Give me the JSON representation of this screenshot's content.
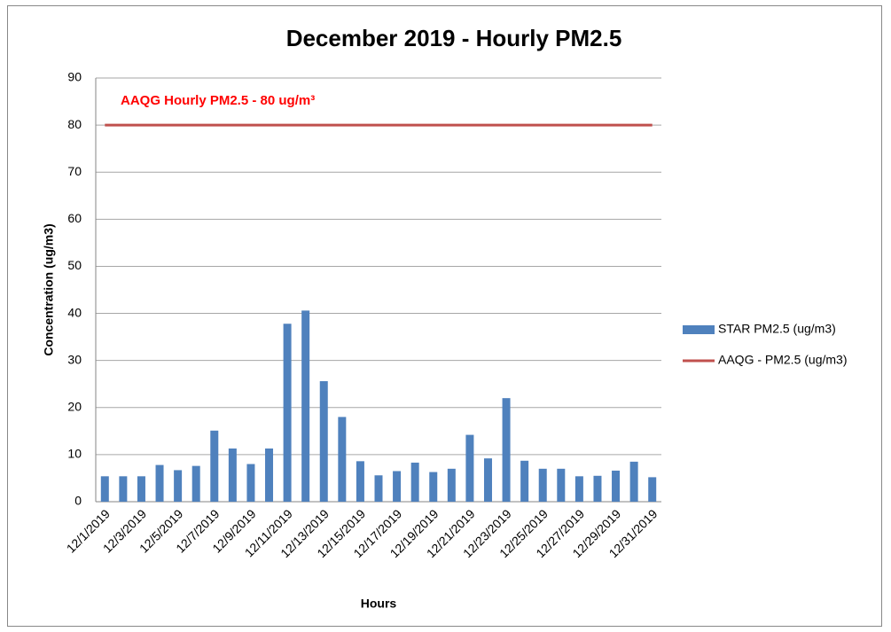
{
  "chart_data": {
    "type": "bar",
    "title": "December 2019 - Hourly PM2.5",
    "annotation": "AAQG Hourly PM2.5 - 80 ug/m³",
    "x_label": "Hours",
    "y_label": "Concentration (ug/m3)",
    "categories": [
      "12/1/2019",
      null,
      "12/3/2019",
      null,
      "12/5/2019",
      null,
      "12/7/2019",
      null,
      "12/9/2019",
      null,
      "12/11/2019",
      null,
      "12/13/2019",
      null,
      "12/15/2019",
      null,
      "12/17/2019",
      null,
      "12/19/2019",
      null,
      "12/21/2019",
      null,
      "12/23/2019",
      null,
      "12/25/2019",
      null,
      "12/27/2019",
      null,
      "12/29/2019",
      null,
      "12/31/2019"
    ],
    "series": [
      {
        "name": "STAR PM2.5 (ug/m3)",
        "type": "bar",
        "color": "#4f81bd",
        "values": [
          5.4,
          5.4,
          5.4,
          7.8,
          6.7,
          7.6,
          15.1,
          11.3,
          8.0,
          11.3,
          37.8,
          40.6,
          25.6,
          18.0,
          8.6,
          5.6,
          6.5,
          8.3,
          6.3,
          7.0,
          14.2,
          9.2,
          22.0,
          8.7,
          7.0,
          7.0,
          5.4,
          5.5,
          6.6,
          8.5,
          5.2
        ]
      },
      {
        "name": "AAQG - PM2.5 (ug/m3)",
        "type": "line",
        "color": "#c0504d",
        "values": [
          80,
          80,
          80,
          80,
          80,
          80,
          80,
          80,
          80,
          80,
          80,
          80,
          80,
          80,
          80,
          80,
          80,
          80,
          80,
          80,
          80,
          80,
          80,
          80,
          80,
          80,
          80,
          80,
          80,
          80,
          80
        ]
      }
    ],
    "ylim": [
      0,
      90
    ],
    "yticks": [
      0,
      10,
      20,
      30,
      40,
      50,
      60,
      70,
      80,
      90
    ],
    "grid": true,
    "legend": "right"
  }
}
